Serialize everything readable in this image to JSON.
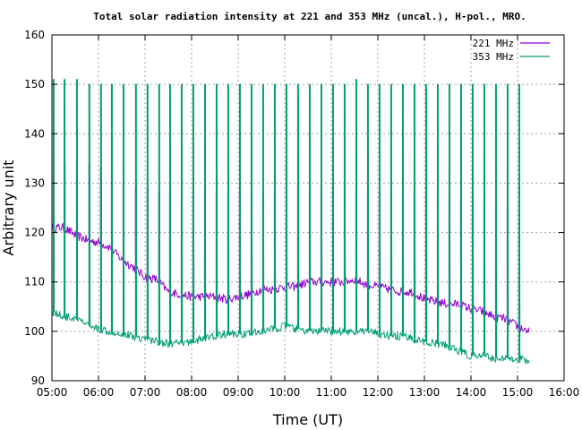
{
  "chart_data": {
    "type": "line",
    "title": "Total solar radiation intensity at 221 and 353 MHz (uncal.), H-pol., MRO.",
    "xlabel": "Time (UT)",
    "ylabel": "Arbitrary unit",
    "xlim": [
      "05:00",
      "16:00"
    ],
    "ylim": [
      90,
      160
    ],
    "x_ticks": [
      "05:00",
      "06:00",
      "07:00",
      "08:00",
      "09:00",
      "10:00",
      "11:00",
      "12:00",
      "13:00",
      "14:00",
      "15:00",
      "16:00"
    ],
    "y_ticks": [
      "90",
      "100",
      "110",
      "120",
      "130",
      "140",
      "150",
      "160"
    ],
    "grid": true,
    "legend_position": "top-right",
    "colors": {
      "221 MHz": "#9400d3",
      "353 MHz": "#009e73"
    },
    "baseline_sample_minutes": 5,
    "series": [
      {
        "name": "221 MHz",
        "x": [
          "05:00",
          "05:15",
          "05:30",
          "05:45",
          "06:00",
          "06:15",
          "06:30",
          "06:45",
          "07:00",
          "07:15",
          "07:30",
          "07:45",
          "08:00",
          "08:15",
          "08:30",
          "08:45",
          "09:00",
          "09:15",
          "09:30",
          "09:45",
          "10:00",
          "10:15",
          "10:30",
          "10:45",
          "11:00",
          "11:15",
          "11:30",
          "11:45",
          "12:00",
          "12:15",
          "12:30",
          "12:45",
          "13:00",
          "13:15",
          "13:30",
          "13:45",
          "14:00",
          "14:15",
          "14:30",
          "14:45",
          "15:00",
          "15:15"
        ],
        "baseline": [
          121,
          121,
          119.5,
          118.5,
          118,
          117,
          114.5,
          113,
          111,
          110.5,
          108,
          107.5,
          107,
          107,
          107,
          106.5,
          107,
          107.5,
          108.5,
          108.5,
          109,
          109,
          110,
          110,
          110,
          110,
          110.5,
          109.5,
          109,
          108.5,
          108,
          108,
          106.5,
          106,
          105.5,
          105.5,
          104.5,
          104,
          103,
          102.5,
          101,
          100
        ],
        "spikes": [
          {
            "time": "05:02",
            "value": 135
          },
          {
            "time": "05:16",
            "value": 134
          },
          {
            "time": "05:32",
            "value": 134
          },
          {
            "time": "05:48",
            "value": 134
          },
          {
            "time": "06:03",
            "value": 133
          },
          {
            "time": "06:17",
            "value": 132
          },
          {
            "time": "06:32",
            "value": 130
          },
          {
            "time": "06:48",
            "value": 129
          },
          {
            "time": "07:03",
            "value": 129
          },
          {
            "time": "07:18",
            "value": 128
          },
          {
            "time": "07:32",
            "value": 128
          },
          {
            "time": "07:47",
            "value": 127
          },
          {
            "time": "08:02",
            "value": 128
          },
          {
            "time": "08:17",
            "value": 128
          },
          {
            "time": "08:32",
            "value": 128
          },
          {
            "time": "08:47",
            "value": 128
          },
          {
            "time": "09:02",
            "value": 128
          },
          {
            "time": "09:17",
            "value": 128
          },
          {
            "time": "09:32",
            "value": 128
          },
          {
            "time": "09:47",
            "value": 128
          },
          {
            "time": "10:02",
            "value": 129
          },
          {
            "time": "10:17",
            "value": 129
          },
          {
            "time": "10:32",
            "value": 129
          },
          {
            "time": "10:47",
            "value": 129
          },
          {
            "time": "11:02",
            "value": 129
          },
          {
            "time": "11:17",
            "value": 129
          },
          {
            "time": "11:32",
            "value": 128
          },
          {
            "time": "11:47",
            "value": 128
          },
          {
            "time": "12:02",
            "value": 128
          },
          {
            "time": "12:17",
            "value": 128
          },
          {
            "time": "12:32",
            "value": 128
          },
          {
            "time": "12:47",
            "value": 128
          },
          {
            "time": "13:02",
            "value": 128
          },
          {
            "time": "13:17",
            "value": 128
          },
          {
            "time": "13:32",
            "value": 127
          },
          {
            "time": "13:47",
            "value": 127
          },
          {
            "time": "14:02",
            "value": 127
          },
          {
            "time": "14:17",
            "value": 126
          },
          {
            "time": "14:32",
            "value": 125
          },
          {
            "time": "14:47",
            "value": 125
          },
          {
            "time": "15:02",
            "value": 125
          }
        ]
      },
      {
        "name": "353 MHz",
        "x": [
          "05:00",
          "05:15",
          "05:30",
          "05:45",
          "06:00",
          "06:15",
          "06:30",
          "06:45",
          "07:00",
          "07:15",
          "07:30",
          "07:45",
          "08:00",
          "08:15",
          "08:30",
          "08:45",
          "09:00",
          "09:15",
          "09:30",
          "09:45",
          "10:00",
          "10:15",
          "10:30",
          "10:45",
          "11:00",
          "11:15",
          "11:30",
          "11:45",
          "12:00",
          "12:15",
          "12:30",
          "12:45",
          "13:00",
          "13:15",
          "13:30",
          "13:45",
          "14:00",
          "14:15",
          "14:30",
          "14:45",
          "15:00",
          "15:15"
        ],
        "baseline": [
          104,
          103,
          102.5,
          101.5,
          100.5,
          100,
          99.5,
          99,
          98.5,
          98,
          97.5,
          97.5,
          98,
          98.5,
          99,
          99.5,
          99.5,
          99.5,
          100,
          100.5,
          101,
          100.5,
          100,
          100,
          100,
          100,
          100,
          100,
          99.5,
          99,
          99,
          98.5,
          98,
          97.5,
          97,
          96,
          95,
          95,
          94.5,
          94.5,
          94.5,
          94
        ],
        "spikes": [
          {
            "time": "05:02",
            "value": 151
          },
          {
            "time": "05:16",
            "value": 151
          },
          {
            "time": "05:32",
            "value": 151
          },
          {
            "time": "05:48",
            "value": 150
          },
          {
            "time": "06:03",
            "value": 150
          },
          {
            "time": "06:17",
            "value": 150
          },
          {
            "time": "06:32",
            "value": 150
          },
          {
            "time": "06:48",
            "value": 150
          },
          {
            "time": "07:03",
            "value": 150
          },
          {
            "time": "07:18",
            "value": 150
          },
          {
            "time": "07:32",
            "value": 150
          },
          {
            "time": "07:47",
            "value": 150
          },
          {
            "time": "08:02",
            "value": 150
          },
          {
            "time": "08:17",
            "value": 150
          },
          {
            "time": "08:32",
            "value": 150
          },
          {
            "time": "08:47",
            "value": 150
          },
          {
            "time": "09:02",
            "value": 150
          },
          {
            "time": "09:17",
            "value": 150
          },
          {
            "time": "09:32",
            "value": 150
          },
          {
            "time": "09:47",
            "value": 150
          },
          {
            "time": "10:02",
            "value": 150
          },
          {
            "time": "10:17",
            "value": 150
          },
          {
            "time": "10:32",
            "value": 150
          },
          {
            "time": "10:47",
            "value": 150
          },
          {
            "time": "11:02",
            "value": 150
          },
          {
            "time": "11:17",
            "value": 150
          },
          {
            "time": "11:32",
            "value": 151
          },
          {
            "time": "11:47",
            "value": 150
          },
          {
            "time": "12:02",
            "value": 150
          },
          {
            "time": "12:17",
            "value": 150
          },
          {
            "time": "12:32",
            "value": 150
          },
          {
            "time": "12:47",
            "value": 150
          },
          {
            "time": "13:02",
            "value": 150
          },
          {
            "time": "13:17",
            "value": 150
          },
          {
            "time": "13:32",
            "value": 150
          },
          {
            "time": "13:47",
            "value": 150
          },
          {
            "time": "14:02",
            "value": 150
          },
          {
            "time": "14:17",
            "value": 150
          },
          {
            "time": "14:32",
            "value": 150
          },
          {
            "time": "14:47",
            "value": 150
          },
          {
            "time": "15:02",
            "value": 150
          }
        ]
      }
    ]
  }
}
